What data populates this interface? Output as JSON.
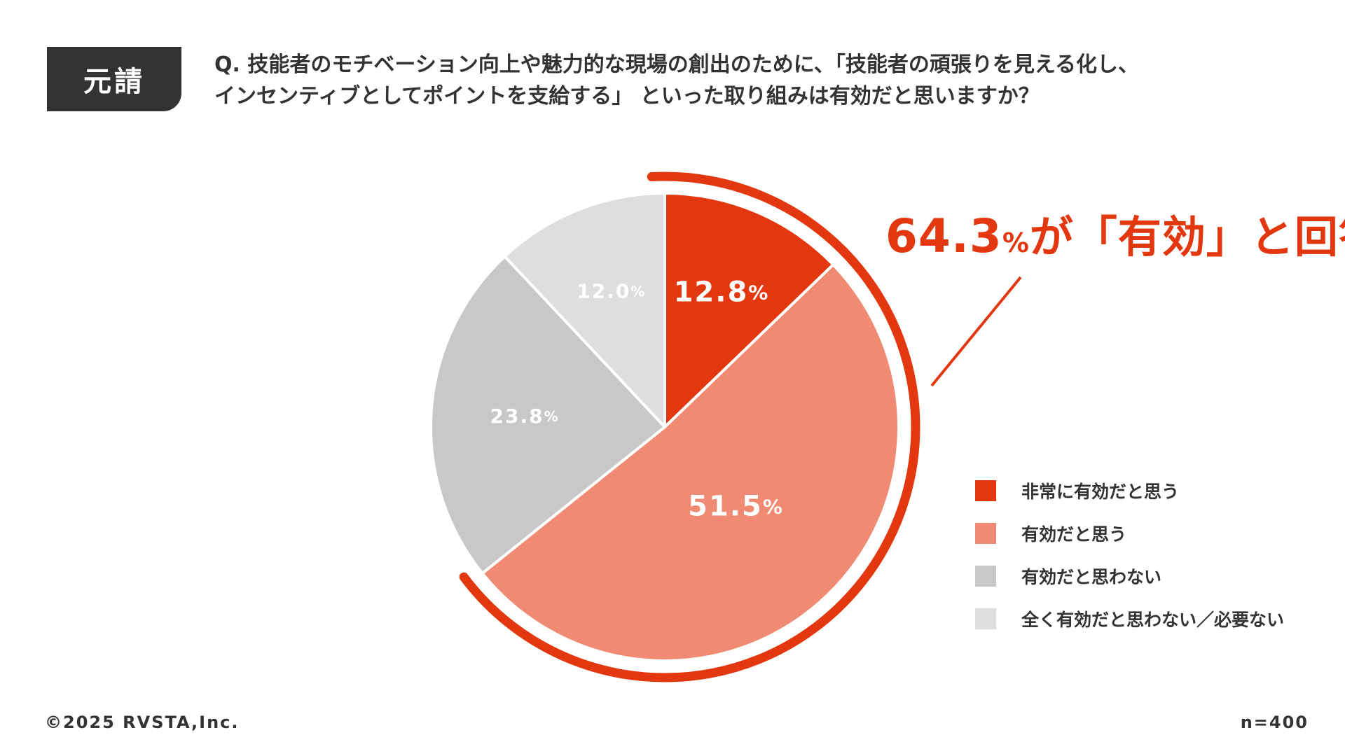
{
  "tag": "元請",
  "question": {
    "line1": "Q. 技能者のモチベーション向上や魅力的な現場の創出のために、「技能者の頑張りを見える化し、",
    "line2": "インセンティブとしてポイントを支給する」 といった取り組みは有効だと思いますか？"
  },
  "callout": {
    "value": "64.3",
    "unit": "%",
    "text": "が「有効」と回答"
  },
  "colors": {
    "accent": "#e3380f",
    "effective": "#f08a72",
    "not_effective": "#c8c8c8",
    "not_at_all": "#dedede",
    "text": "#333333"
  },
  "chart_data": {
    "type": "pie",
    "unit": "%",
    "labels": [
      "非常に有効だと思う",
      "有効だと思う",
      "有効だと思わない",
      "全く有効だと思わない／必要ない"
    ],
    "values": [
      12.8,
      51.5,
      23.8,
      12.0
    ],
    "value_labels": [
      "12.8",
      "51.5",
      "23.8",
      "12.0"
    ],
    "colors": [
      "#e3380f",
      "#f08a72",
      "#c8c8c8",
      "#dedede"
    ],
    "highlight_total": 64.3,
    "legend_position": "right"
  },
  "footer": {
    "copyright": "©2025 RVSTA,Inc.",
    "n": "n=400"
  }
}
